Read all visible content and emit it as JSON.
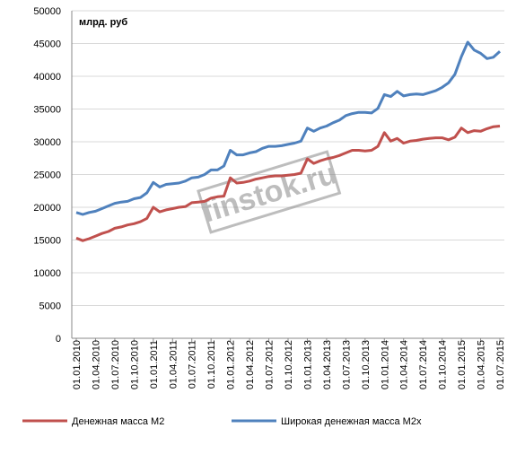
{
  "chart_data": {
    "type": "line",
    "annotation": "млрд. руб",
    "watermark": "finstok.ru",
    "categories": [
      "01.01.2010",
      null,
      null,
      "01.04.2010",
      null,
      null,
      "01.07.2010",
      null,
      null,
      "01.10.2010",
      null,
      null,
      "01.01.2011",
      null,
      null,
      "01.04.2011",
      null,
      null,
      "01.07.2011",
      null,
      null,
      "01.10.2011",
      null,
      null,
      "01.01.2012",
      null,
      null,
      "01.04.2012",
      null,
      null,
      "01.07.2012",
      null,
      null,
      "01.10.2012",
      null,
      null,
      "01.01.2013",
      null,
      null,
      "01.04.2013",
      null,
      null,
      "01.07.2013",
      null,
      null,
      "01.10.2013",
      null,
      null,
      "01.01.2014",
      null,
      null,
      "01.04.2014",
      null,
      null,
      "01.07.2014",
      null,
      null,
      "01.10.2014",
      null,
      null,
      "01.01.2015",
      null,
      null,
      "01.04.2015",
      null,
      null,
      "01.07.2015"
    ],
    "series": [
      {
        "name": "Денежная масса М2",
        "color": "#c0504d",
        "values": [
          15300,
          14900,
          15200,
          15600,
          16000,
          16300,
          16800,
          17000,
          17300,
          17500,
          17800,
          18300,
          20000,
          19300,
          19600,
          19800,
          20000,
          20100,
          20700,
          20800,
          20900,
          21400,
          21600,
          21700,
          24500,
          23700,
          23800,
          24000,
          24300,
          24500,
          24700,
          24800,
          24800,
          24900,
          25000,
          25200,
          27400,
          26700,
          27100,
          27400,
          27600,
          27900,
          28300,
          28700,
          28700,
          28600,
          28700,
          29300,
          31400,
          30100,
          30500,
          29800,
          30100,
          30200,
          30400,
          30500,
          30600,
          30600,
          30300,
          30700,
          32100,
          31400,
          31700,
          31600,
          32000,
          32300,
          32400
        ]
      },
      {
        "name": "Широкая денежная масса М2х",
        "color": "#4f81bd",
        "values": [
          19200,
          18900,
          19200,
          19400,
          19800,
          20200,
          20600,
          20800,
          20900,
          21300,
          21500,
          22200,
          23800,
          23100,
          23500,
          23600,
          23700,
          24000,
          24500,
          24600,
          25000,
          25700,
          25700,
          26300,
          28700,
          28000,
          28000,
          28300,
          28500,
          29000,
          29300,
          29300,
          29400,
          29600,
          29800,
          30100,
          32100,
          31600,
          32100,
          32400,
          32900,
          33300,
          34000,
          34300,
          34500,
          34500,
          34400,
          35100,
          37200,
          36900,
          37700,
          37000,
          37200,
          37300,
          37200,
          37500,
          37800,
          38300,
          39000,
          40300,
          43000,
          45200,
          44000,
          43500,
          42700,
          42900,
          43800
        ]
      }
    ],
    "ylim": [
      0,
      50000
    ],
    "yticks": [
      0,
      5000,
      10000,
      15000,
      20000,
      25000,
      30000,
      35000,
      40000,
      45000,
      50000
    ],
    "grid": true,
    "legend": "bottom"
  }
}
